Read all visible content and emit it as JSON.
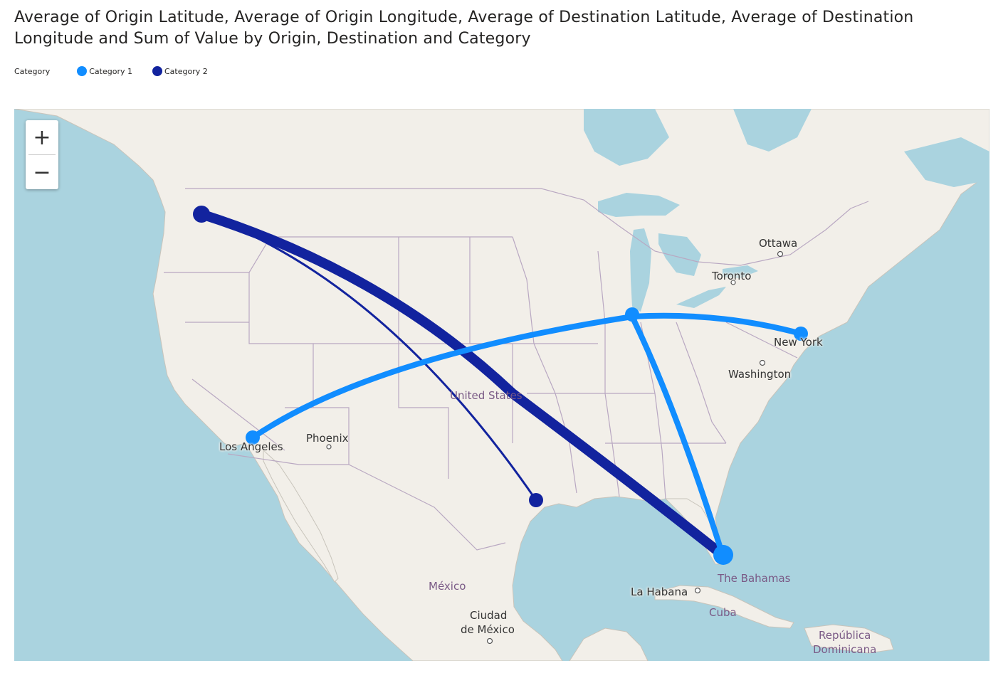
{
  "title": "Average of Origin Latitude, Average of Origin Longitude, Average of Destination Latitude, Average of Destination Longitude and Sum of Value by Origin, Destination and Category",
  "legend": {
    "title": "Category",
    "items": [
      {
        "label": "Category 1",
        "color": "#118dff"
      },
      {
        "label": "Category 2",
        "color": "#12239e"
      }
    ]
  },
  "map": {
    "zoom_in_label": "+",
    "zoom_out_label": "−",
    "labels": {
      "ottawa": "Ottawa",
      "toronto": "Toronto",
      "new_york": "New York",
      "washington": "Washington",
      "united_states": "United States",
      "los_angeles": "Los Angeles",
      "phoenix": "Phoenix",
      "mexico": "México",
      "ciudad_de_mexico_1": "Ciudad",
      "ciudad_de_mexico_2": "de México",
      "la_habana": "La Habana",
      "the_bahamas": "The Bahamas",
      "cuba": "Cuba",
      "republica_1": "República",
      "republica_2": "Dominicana"
    },
    "colors": {
      "water": "#aad3df",
      "land": "#f2efe9",
      "border": "#b9a8c2"
    }
  }
}
